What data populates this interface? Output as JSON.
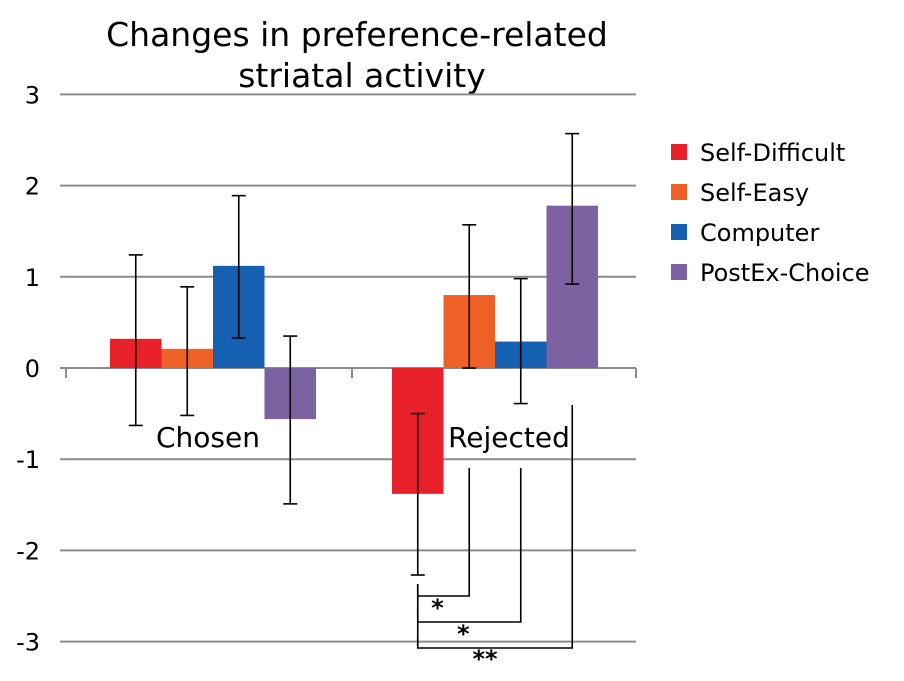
{
  "chart_data": {
    "type": "bar",
    "title_lines": [
      "Changes in preference-related",
      "striatal activity"
    ],
    "categories": [
      "Chosen",
      "Rejected"
    ],
    "series": [
      {
        "name": "Self-Difficult",
        "color": "#E8202A",
        "values": [
          0.32,
          -1.38
        ],
        "err_low": [
          -0.63,
          -2.27
        ],
        "err_high": [
          1.24,
          -0.5
        ]
      },
      {
        "name": "Self-Easy",
        "color": "#EE6025",
        "values": [
          0.21,
          0.8
        ],
        "err_low": [
          -0.52,
          0.0
        ],
        "err_high": [
          0.89,
          1.57
        ]
      },
      {
        "name": "Computer",
        "color": "#1560B0",
        "values": [
          1.12,
          0.29
        ],
        "err_low": [
          0.33,
          -0.39
        ],
        "err_high": [
          1.89,
          0.98
        ]
      },
      {
        "name": "PostEx-Choice",
        "color": "#7D62A2",
        "values": [
          -0.56,
          1.78
        ],
        "err_low": [
          -1.49,
          0.92
        ],
        "err_high": [
          0.35,
          2.57
        ]
      }
    ],
    "yticks": [
      "3",
      "2",
      "1",
      "0",
      "-1",
      "-2",
      "-3"
    ],
    "ylim": [
      -3,
      3
    ],
    "grid": true,
    "legend": "right",
    "significance": [
      {
        "group": "Rejected",
        "from": "Self-Difficult",
        "to": "Self-Easy",
        "label": "*"
      },
      {
        "group": "Rejected",
        "from": "Self-Difficult",
        "to": "Computer",
        "label": "*"
      },
      {
        "group": "Rejected",
        "from": "Self-Difficult",
        "to": "PostEx-Choice",
        "label": "**"
      }
    ]
  }
}
